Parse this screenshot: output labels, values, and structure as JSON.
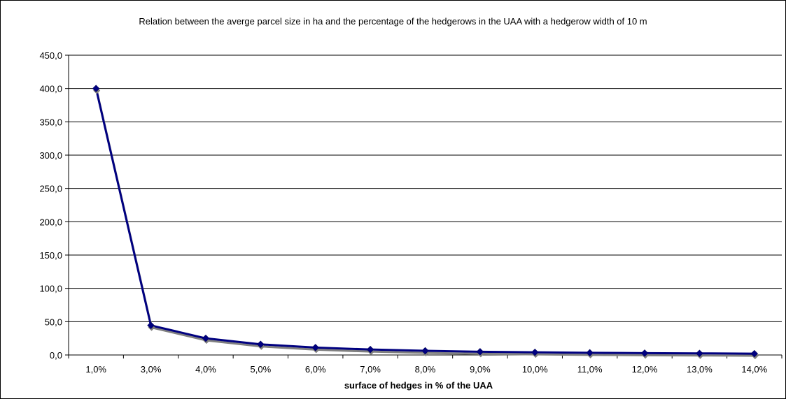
{
  "chart_data": {
    "type": "line",
    "title": "Relation between the averge parcel size in ha and the percentage of the hedgerows in the UAA with a hedgerow width of 10 m",
    "xlabel": "surface of hedges in % of the UAA",
    "ylabel": "",
    "categories": [
      "1,0%",
      "3,0%",
      "4,0%",
      "5,0%",
      "6,0%",
      "7,0%",
      "8,0%",
      "9,0%",
      "10,0%",
      "11,0%",
      "12,0%",
      "13,0%",
      "14,0%"
    ],
    "y_tick_labels": [
      "0,0",
      "50,0",
      "100,0",
      "150,0",
      "200,0",
      "250,0",
      "300,0",
      "350,0",
      "400,0",
      "450,0"
    ],
    "ylim": [
      0,
      450
    ],
    "grid": true,
    "legend": "none",
    "series": [
      {
        "values": [
          400.0,
          44.4,
          25.0,
          16.0,
          11.1,
          8.2,
          6.3,
          4.9,
          4.0,
          3.3,
          2.8,
          2.4,
          2.0
        ],
        "color": "#000080",
        "marker": "diamond",
        "shadow_color": "#808080"
      }
    ]
  }
}
